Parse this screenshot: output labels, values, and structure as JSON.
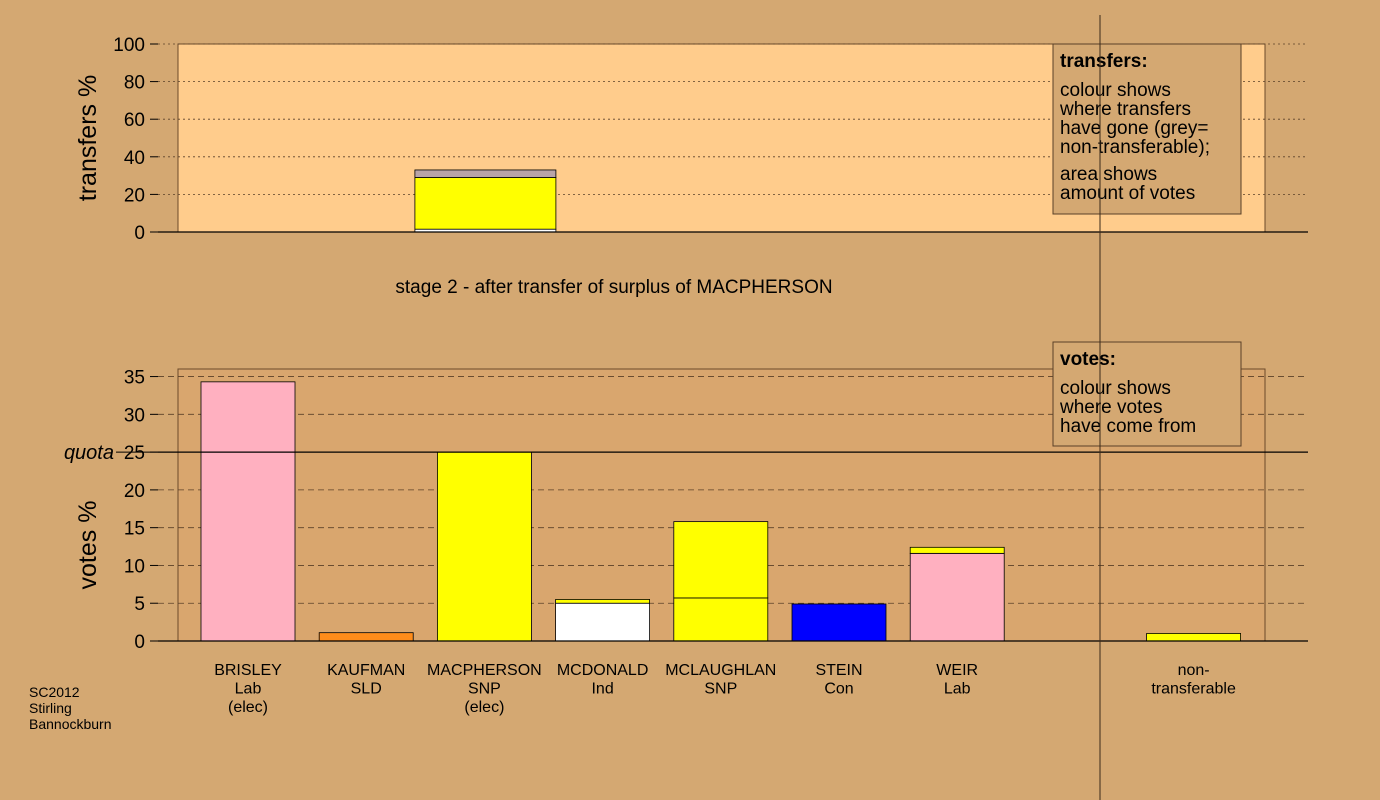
{
  "chart_data": [
    {
      "type": "stacked-bar",
      "ylabel": "transfers %",
      "ylim": [
        0,
        100
      ],
      "yticks": [
        0,
        20,
        40,
        60,
        80,
        100
      ],
      "grid": true,
      "segments": [
        {
          "value": 1.5,
          "color": "#ffffff"
        },
        {
          "value": 27.5,
          "color": "#ffff00"
        },
        {
          "value": 4,
          "color": "#b8a4a8"
        }
      ],
      "legend": {
        "title": "transfers:",
        "paragraphs": [
          [
            "colour shows",
            "where transfers",
            "have gone (grey=",
            "non-transferable);"
          ],
          [
            "area shows",
            "amount of votes"
          ]
        ]
      }
    },
    {
      "type": "stacked-bar",
      "title": "stage 2 - after transfer of surplus of MACPHERSON",
      "ylabel": "votes %",
      "ylim": [
        0,
        36
      ],
      "yticks": [
        0,
        5,
        10,
        15,
        20,
        25,
        30,
        35
      ],
      "grid": true,
      "quota": {
        "value": 25,
        "label": "quota"
      },
      "bars": [
        {
          "label": [
            "BRISLEY",
            "Lab",
            "(elec)"
          ],
          "segments": [
            {
              "value": 34.3,
              "color": "#ffb0c0"
            }
          ]
        },
        {
          "label": [
            "KAUFMAN",
            "SLD"
          ],
          "segments": [
            {
              "value": 1.1,
              "color": "#ff8c1a"
            }
          ]
        },
        {
          "label": [
            "MACPHERSON",
            "SNP",
            "(elec)"
          ],
          "segments": [
            {
              "value": 25,
              "color": "#ffff00"
            }
          ]
        },
        {
          "label": [
            "MCDONALD",
            "Ind"
          ],
          "segments": [
            {
              "value": 5.0,
              "color": "#ffffff"
            },
            {
              "value": 0.5,
              "color": "#ffff00"
            }
          ]
        },
        {
          "label": [
            "MCLAUGHLAN",
            "SNP"
          ],
          "segments": [
            {
              "value": 5.7,
              "color": "#ffff00"
            },
            {
              "value": 10.1,
              "color": "#ffff00"
            }
          ]
        },
        {
          "label": [
            "STEIN",
            "Con"
          ],
          "segments": [
            {
              "value": 4.9,
              "color": "#0000ff"
            }
          ]
        },
        {
          "label": [
            "WEIR",
            "Lab"
          ],
          "segments": [
            {
              "value": 11.6,
              "color": "#ffb0c0"
            },
            {
              "value": 0.8,
              "color": "#ffff00"
            }
          ]
        },
        null,
        {
          "label": [
            "non-",
            "transferable"
          ],
          "segments": [
            {
              "value": 1.0,
              "color": "#ffff00"
            }
          ]
        }
      ],
      "legend": {
        "title": "votes:",
        "paragraphs": [
          [
            "colour shows",
            "where votes",
            "have come from"
          ]
        ]
      }
    }
  ],
  "footer": [
    "SC2012",
    "Stirling",
    "Bannockburn"
  ]
}
